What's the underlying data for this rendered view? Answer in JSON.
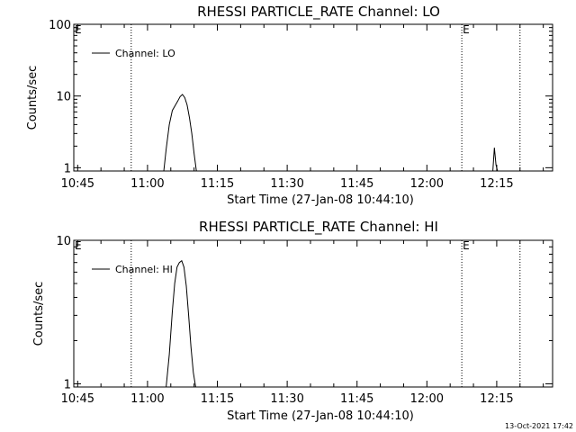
{
  "chart_data": [
    {
      "type": "line",
      "title": "RHESSI PARTICLE_RATE Channel: LO",
      "xlabel": "Start Time (27-Jan-08 10:44:10)",
      "ylabel": "Counts/sec",
      "yscale": "log",
      "xlim": [
        "10:44:10",
        "12:27:00"
      ],
      "ylim": [
        0.9,
        100
      ],
      "x_ticks": [
        "10:45",
        "11:00",
        "11:15",
        "11:30",
        "11:45",
        "12:00",
        "12:15"
      ],
      "y_ticks": [
        "1",
        "10",
        "100"
      ],
      "legend": "top-left",
      "series": [
        {
          "name": "Channel: LO",
          "x": [
            "11:03:30",
            "11:04:00",
            "11:04:40",
            "11:05:20",
            "11:06:00",
            "11:06:30",
            "11:07:00",
            "11:07:30",
            "11:08:00",
            "11:08:30",
            "11:09:00",
            "11:09:30",
            "11:10:00",
            "11:10:30",
            "12:14:10",
            "12:14:30",
            "12:14:50",
            "12:15:10"
          ],
          "y": [
            0.9,
            1.8,
            4.0,
            6.3,
            7.5,
            8.5,
            9.8,
            10.5,
            9.5,
            7.5,
            5.0,
            3.0,
            1.6,
            0.9,
            0.9,
            1.9,
            1.1,
            0.9
          ]
        }
      ],
      "vlines": [
        {
          "x": "10:56:30",
          "label": ""
        },
        {
          "x": "12:07:30",
          "label": "E"
        },
        {
          "x": "12:20:00",
          "label": ""
        }
      ],
      "corner_label": "E"
    },
    {
      "type": "line",
      "title": "RHESSI PARTICLE_RATE Channel: HI",
      "xlabel": "Start Time (27-Jan-08 10:44:10)",
      "ylabel": "Counts/sec",
      "yscale": "log",
      "xlim": [
        "10:44:10",
        "12:27:00"
      ],
      "ylim": [
        0.95,
        10
      ],
      "x_ticks": [
        "10:45",
        "11:00",
        "11:15",
        "11:30",
        "11:45",
        "12:00",
        "12:15"
      ],
      "y_ticks": [
        "1",
        "10"
      ],
      "legend": "top-left",
      "series": [
        {
          "name": "Channel: HI",
          "x": [
            "11:04:00",
            "11:04:40",
            "11:05:20",
            "11:05:50",
            "11:06:20",
            "11:06:50",
            "11:07:20",
            "11:07:50",
            "11:08:20",
            "11:08:50",
            "11:09:20",
            "11:09:50",
            "11:10:20"
          ],
          "y": [
            0.95,
            1.6,
            3.2,
            5.0,
            6.5,
            7.0,
            7.2,
            6.5,
            4.8,
            3.0,
            1.8,
            1.2,
            0.95
          ]
        }
      ],
      "vlines": [
        {
          "x": "10:56:30",
          "label": ""
        },
        {
          "x": "12:07:30",
          "label": "E"
        },
        {
          "x": "12:20:00",
          "label": ""
        }
      ],
      "corner_label": "E"
    }
  ],
  "timestamp": "13-Oct-2021 17:42"
}
